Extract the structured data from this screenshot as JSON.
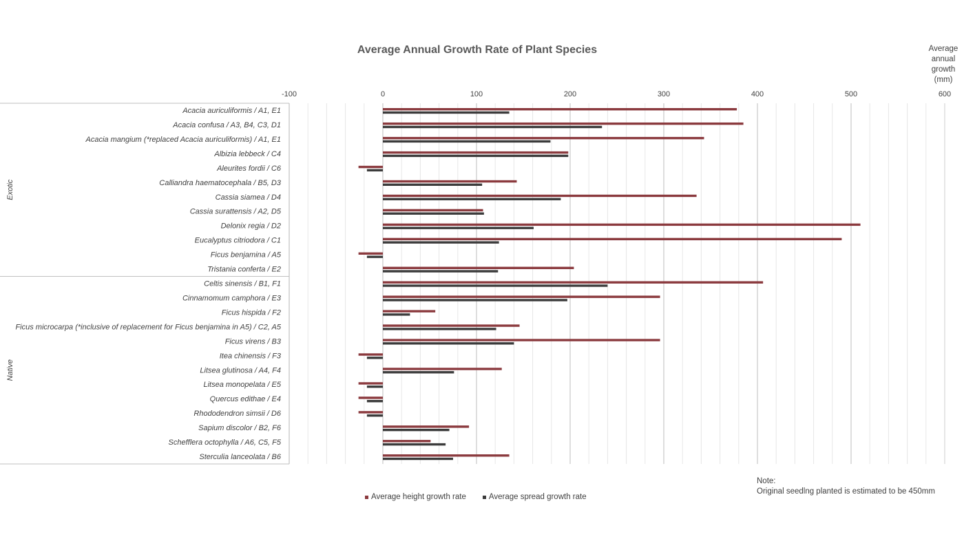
{
  "chart_data": {
    "type": "bar",
    "orientation": "horizontal",
    "title": "Average Annual Growth Rate of Plant Species",
    "value_axis_label": "Average annual growth (mm)",
    "xlim": [
      -100,
      600
    ],
    "ticks": [
      -100,
      0,
      100,
      200,
      300,
      400,
      500,
      600
    ],
    "tick_labels": [
      "-100",
      "0",
      "100",
      "200",
      "300",
      "400",
      "500",
      "600"
    ],
    "grid": true,
    "legend_position": "bottom",
    "groups": [
      {
        "name": "Exotic",
        "start": 0,
        "end": 11
      },
      {
        "name": "Native",
        "start": 12,
        "end": 24
      }
    ],
    "categories": [
      "Acacia auriculiformis / A1, E1",
      "Acacia confusa / A3, B4, C3, D1",
      "Acacia mangium (*replaced Acacia auriculiformis) / A1, E1",
      "Albizia lebbeck / C4",
      "Aleurites fordii / C6",
      "Calliandra haematocephala / B5, D3",
      "Cassia siamea / D4",
      "Cassia surattensis / A2, D5",
      "Delonix regia / D2",
      "Eucalyptus citriodora / C1",
      "Ficus benjamina / A5",
      "Tristania conferta / E2",
      "Celtis sinensis / B1, F1",
      "Cinnamomum camphora / E3",
      "Ficus hispida / F2",
      "Ficus microcarpa (*inclusive of replacement for Ficus benjamina in A5) / C2, A5",
      "Ficus virens / B3",
      "Itea chinensis / F3",
      "Litsea glutinosa / A4, F4",
      "Litsea monopelata / E5",
      "Quercus edithae / E4",
      "Rhododendron simsii / D6",
      "Sapium discolor / B2, F6",
      "Schefflera octophylla / A6, C5, F5",
      "Sterculia lanceolata / B6"
    ],
    "series": [
      {
        "name": "Average height growth rate",
        "color": "#8B3A3E",
        "values": [
          378,
          385,
          343,
          198,
          -26,
          143,
          335,
          107,
          510,
          490,
          -26,
          204,
          406,
          296,
          56,
          146,
          296,
          -26,
          127,
          -26,
          -26,
          -26,
          92,
          51,
          135
        ]
      },
      {
        "name": "Average spread growth rate",
        "color": "#3B3B3B",
        "values": [
          135,
          234,
          179,
          198,
          -17,
          106,
          190,
          108,
          161,
          124,
          -17,
          123,
          240,
          197,
          29,
          121,
          140,
          -17,
          76,
          -17,
          -17,
          -17,
          71,
          67,
          75
        ]
      }
    ]
  },
  "note": {
    "heading": "Note:",
    "text": "Original seedlng planted is estimated to be 450mm"
  },
  "unit_lines": [
    "Average",
    "annual",
    "growth",
    "(mm)"
  ]
}
